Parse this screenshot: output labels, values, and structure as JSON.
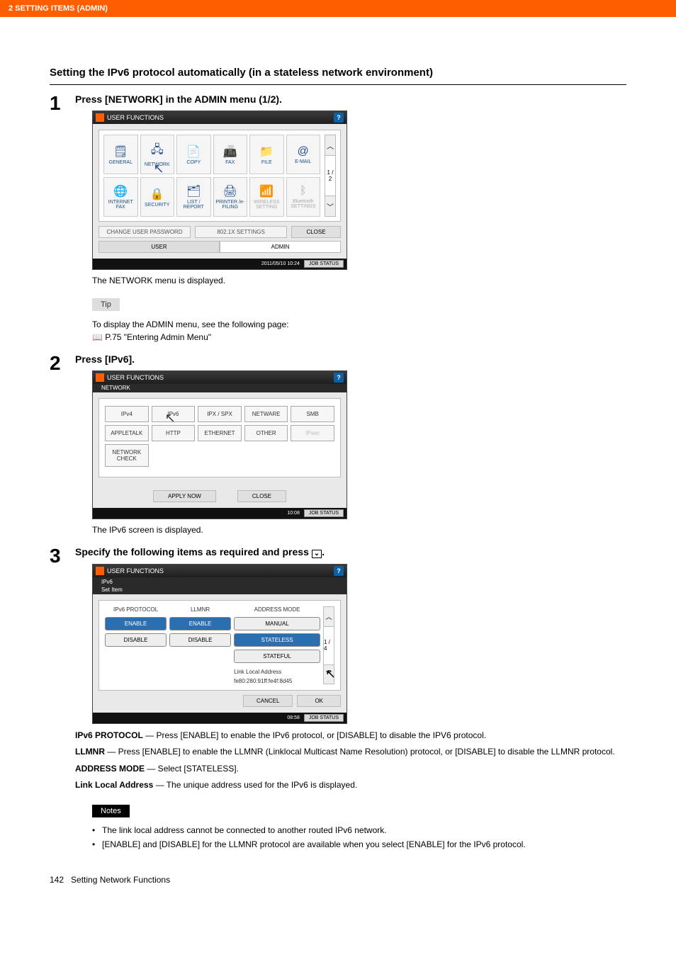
{
  "header": {
    "breadcrumb": "2 SETTING ITEMS (ADMIN)"
  },
  "section": {
    "title": "Setting the IPv6 protocol automatically (in a stateless network environment)"
  },
  "steps": {
    "s1": {
      "num": "1",
      "title": "Press [NETWORK] in the ADMIN menu (1/2).",
      "caption": "The NETWORK menu is displayed.",
      "tip_label": "Tip",
      "tip_line1": "To display the ADMIN menu, see the following page:",
      "tip_line2": "P.75 \"Entering Admin Menu\""
    },
    "s2": {
      "num": "2",
      "title": "Press [IPv6].",
      "caption": "The IPv6 screen is displayed."
    },
    "s3": {
      "num": "3",
      "title_a": "Specify the following items as required and press ",
      "title_b": "."
    }
  },
  "shot1": {
    "title": "USER FUNCTIONS",
    "help": "?",
    "icons": {
      "r1": [
        {
          "ico": "🗒",
          "lbl": "GENERAL"
        },
        {
          "ico": "🖧",
          "lbl": "NETWORK",
          "cursor": true
        },
        {
          "ico": "📄",
          "lbl": "COPY"
        },
        {
          "ico": "📠",
          "lbl": "FAX"
        },
        {
          "ico": "📁",
          "lbl": "FILE"
        },
        {
          "ico": "@",
          "lbl": "E-MAIL"
        }
      ],
      "r2": [
        {
          "ico": "🌐",
          "lbl": "INTERNET FAX"
        },
        {
          "ico": "🔒",
          "lbl": "SECURITY"
        },
        {
          "ico": "🗂",
          "lbl": "LIST / REPORT"
        },
        {
          "ico": "🖨",
          "lbl": "PRINTER /e-FILING"
        },
        {
          "ico": "📶",
          "lbl": "WIRELESS SETTING",
          "dim": true
        },
        {
          "ico": "ᛒ",
          "lbl": "Bluetooth SETTINGS",
          "dim": true
        }
      ]
    },
    "page_ind": "1 / 2",
    "btns": {
      "chpw": "CHANGE USER PASSWORD",
      "dot1x": "802.1X SETTINGS",
      "close": "CLOSE"
    },
    "tabs": {
      "user": "USER",
      "admin": "ADMIN"
    },
    "footer": {
      "time": "2011/05/10 10:24",
      "js": "JOB STATUS"
    }
  },
  "shot2": {
    "title": "USER FUNCTIONS",
    "crumb": "NETWORK",
    "help": "?",
    "buttons": {
      "r1": [
        "IPv4",
        "IPv6",
        "IPX / SPX",
        "NETWARE",
        "SMB"
      ],
      "r2": [
        "APPLETALK",
        "HTTP",
        "ETHERNET",
        "OTHER",
        "IPsec"
      ]
    },
    "cursor_idx": 1,
    "dim_r2_idx": 4,
    "check": "NETWORK CHECK",
    "apply": "APPLY NOW",
    "close": "CLOSE",
    "footer": {
      "time": "10:08",
      "js": "JOB STATUS"
    }
  },
  "shot3": {
    "title": "USER FUNCTIONS",
    "crumb1": "IPv6",
    "crumb2": "Set Item",
    "help": "?",
    "cols": {
      "proto": {
        "lbl": "IPv6 PROTOCOL",
        "enable": "ENABLE",
        "disable": "DISABLE"
      },
      "llmnr": {
        "lbl": "LLMNR",
        "enable": "ENABLE",
        "disable": "DISABLE"
      },
      "addr": {
        "lbl": "ADDRESS MODE",
        "manual": "MANUAL",
        "stateless": "STATELESS",
        "stateful": "STATEFUL",
        "link_lbl": "Link Local Address",
        "link_val": "fe80:280:91ff:fe4f:8d45"
      }
    },
    "page_ind": "1 / 4",
    "cancel": "CANCEL",
    "ok": "OK",
    "footer": {
      "time": "08:58",
      "js": "JOB STATUS"
    }
  },
  "descriptions": {
    "proto_lbl": "IPv6 PROTOCOL",
    "proto_txt": " — Press [ENABLE] to enable the IPv6 protocol, or [DISABLE] to disable the IPV6 protocol.",
    "llmnr_lbl": "LLMNR",
    "llmnr_txt": " — Press [ENABLE] to enable the LLMNR (Linklocal Multicast Name Resolution) protocol, or [DISABLE] to disable the LLMNR protocol.",
    "addr_lbl": "ADDRESS MODE",
    "addr_txt": " — Select [STATELESS].",
    "link_lbl": "Link Local Address",
    "link_txt": " — The unique address used for the IPv6 is displayed."
  },
  "notes": {
    "label": "Notes",
    "n1": "The link local address cannot be connected to another routed IPv6 network.",
    "n2": "[ENABLE] and [DISABLE] for the LLMNR protocol are available when you select [ENABLE] for the IPv6 protocol."
  },
  "footer": {
    "page": "142",
    "section": "Setting Network Functions"
  },
  "down_glyph": "⌄"
}
